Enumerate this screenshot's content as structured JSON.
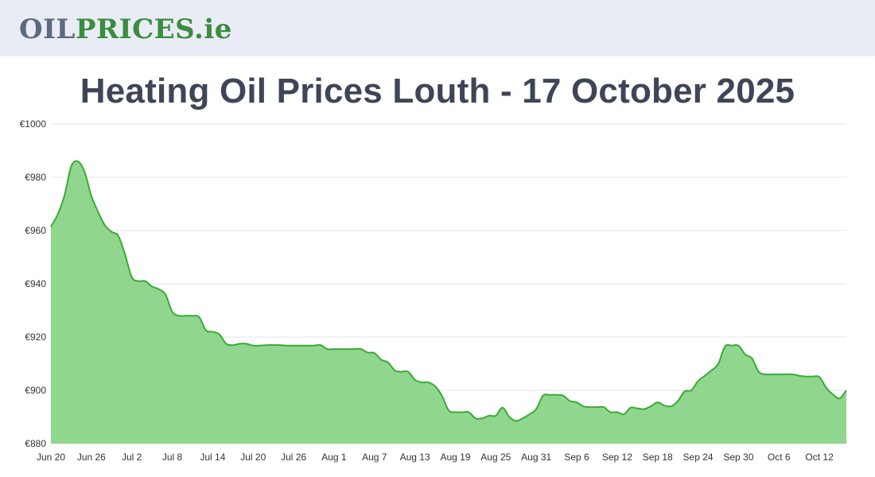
{
  "header": {
    "logo_oil": "OIL",
    "logo_prices": "PRICES.ie"
  },
  "page_title": "Heating Oil Prices Louth - 17 October 2025",
  "colors": {
    "line": "#3aaa35",
    "fill": "#90d68e",
    "grid": "#e5e5e5",
    "logo_grey": "#5c6a7e",
    "logo_green": "#3b8c3f"
  },
  "chart_data": {
    "type": "area",
    "title": "Heating Oil Prices Louth - 17 October 2025",
    "xlabel": "",
    "ylabel": "",
    "ylim": [
      880,
      1000
    ],
    "y_ticks": [
      "€880",
      "€900",
      "€920",
      "€940",
      "€960",
      "€980",
      "€1000"
    ],
    "y_tick_values": [
      880,
      900,
      920,
      940,
      960,
      980,
      1000
    ],
    "x_tick_labels": [
      "Jun 20",
      "Jun 26",
      "Jul 2",
      "Jul 8",
      "Jul 14",
      "Jul 20",
      "Jul 26",
      "Aug 1",
      "Aug 7",
      "Aug 13",
      "Aug 19",
      "Aug 25",
      "Aug 31",
      "Sep 6",
      "Sep 12",
      "Sep 18",
      "Sep 24",
      "Sep 30",
      "Oct 6",
      "Oct 12"
    ],
    "grid": true,
    "legend": "none",
    "series": [
      {
        "values": [
          961.5,
          966,
          973,
          984,
          986,
          982,
          973,
          967,
          962,
          959.5,
          958,
          951,
          942.5,
          941,
          941,
          939,
          938,
          936,
          929.5,
          928,
          928,
          928,
          927.5,
          922.5,
          922,
          921,
          917.5,
          917,
          917.5,
          917.5,
          916.8,
          916.8,
          917,
          917,
          917,
          916.8,
          916.8,
          916.8,
          916.8,
          916.8,
          917,
          915.5,
          915.5,
          915.5,
          915.5,
          915.5,
          915.5,
          914.2,
          914,
          911.5,
          910.5,
          907.5,
          907,
          907,
          904,
          903,
          903,
          901.5,
          898,
          892.5,
          891.8,
          891.8,
          891.8,
          889.5,
          889.5,
          890.5,
          890.5,
          893.5,
          890,
          888.5,
          889.5,
          891,
          893,
          898,
          898.3,
          898.3,
          898,
          896,
          895.5,
          894,
          893.7,
          893.7,
          893.7,
          891.8,
          891.8,
          891,
          893.5,
          893.2,
          893,
          894,
          895.5,
          894.3,
          894,
          896,
          899.6,
          900,
          903.5,
          905.5,
          907.5,
          910,
          916.5,
          916.8,
          916.8,
          913.5,
          912,
          907,
          906,
          906,
          906,
          906,
          906,
          905.5,
          905.2,
          905.2,
          905,
          901,
          898.5,
          897,
          900
        ]
      }
    ]
  }
}
